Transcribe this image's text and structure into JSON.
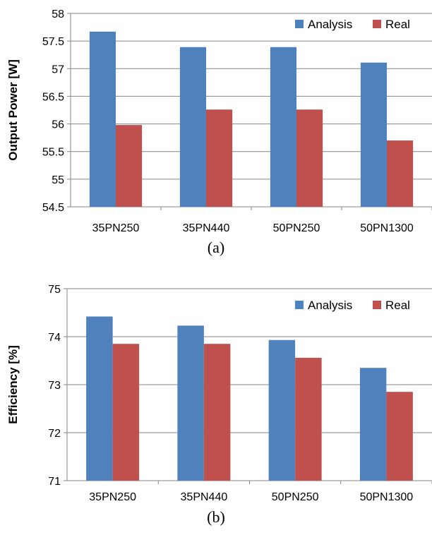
{
  "chart_data": [
    {
      "id": "a",
      "type": "bar",
      "categories": [
        "35PN250",
        "35PN440",
        "50PN250",
        "50PN1300"
      ],
      "series": [
        {
          "name": "Analysis",
          "color": "#4F81BD",
          "values": [
            57.67,
            57.39,
            57.39,
            57.11
          ]
        },
        {
          "name": "Real",
          "color": "#C0504D",
          "values": [
            55.98,
            56.26,
            56.26,
            55.7
          ]
        }
      ],
      "ylabel": "Output Power [W]",
      "ylim": [
        54.5,
        58
      ],
      "yticks": [
        "54.5",
        "55",
        "55.5",
        "56",
        "56.5",
        "57",
        "57.5",
        "58"
      ],
      "grid": true,
      "legend": "top-right",
      "caption": "(a)"
    },
    {
      "id": "b",
      "type": "bar",
      "categories": [
        "35PN250",
        "35PN440",
        "50PN250",
        "50PN1300"
      ],
      "series": [
        {
          "name": "Analysis",
          "color": "#4F81BD",
          "values": [
            74.42,
            74.23,
            73.93,
            73.35
          ]
        },
        {
          "name": "Real",
          "color": "#C0504D",
          "values": [
            73.85,
            73.85,
            73.56,
            72.85
          ]
        }
      ],
      "ylabel": "Efficiency [%]",
      "ylim": [
        71,
        75
      ],
      "yticks": [
        "71",
        "72",
        "73",
        "74",
        "75"
      ],
      "grid": true,
      "legend": "top-right",
      "caption": "(b)"
    }
  ]
}
